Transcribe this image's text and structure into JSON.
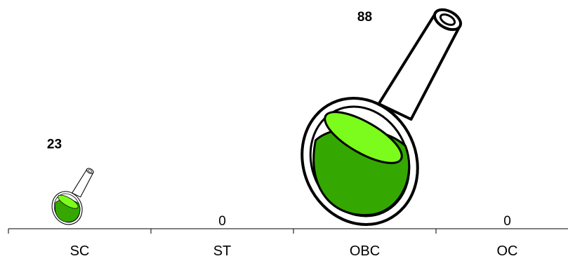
{
  "chart_data": {
    "type": "bar",
    "marker": "flask-pictograph",
    "title": "",
    "xlabel": "",
    "ylabel": "",
    "categories": [
      "SC",
      "ST",
      "OBC",
      "OC"
    ],
    "values": [
      23,
      0,
      88,
      0
    ],
    "value_labels": [
      "23",
      "0",
      "88",
      "0"
    ],
    "ylim": [
      0,
      88
    ],
    "grid": false,
    "legend": "none",
    "colors": {
      "liquid_dark": "#34a800",
      "liquid_light": "#7cfc1c",
      "outline": "#000000",
      "glass": "#ffffff"
    }
  }
}
